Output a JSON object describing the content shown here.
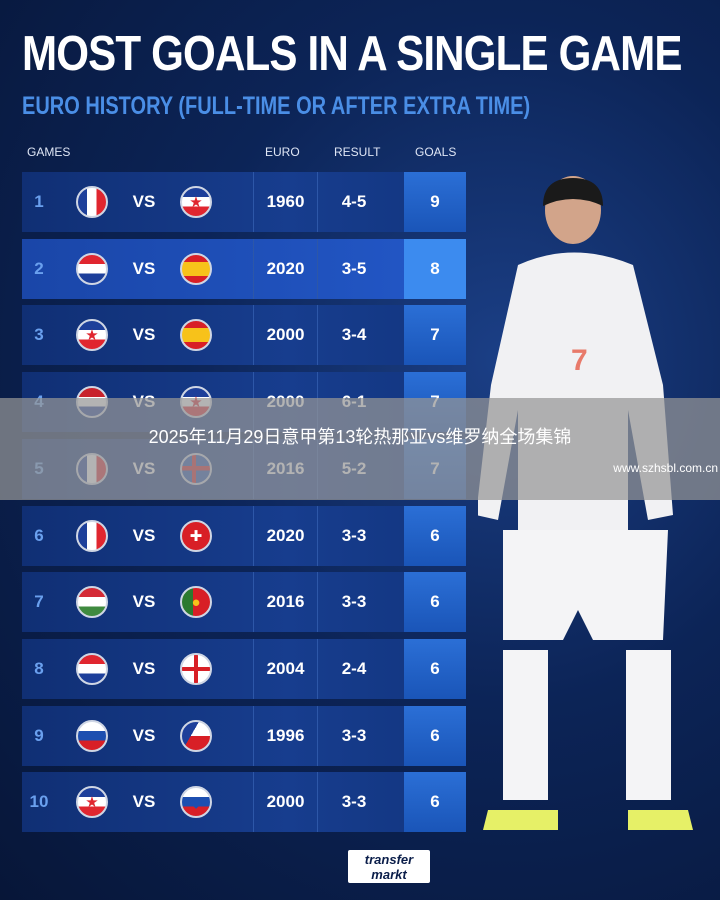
{
  "title": "MOST GOALS IN A SINGLE GAME",
  "subtitle": "EURO HISTORY (FULL-TIME OR AFTER EXTRA TIME)",
  "headers": {
    "games": "GAMES",
    "euro": "EURO",
    "result": "RESULT",
    "goals": "GOALS"
  },
  "vs_label": "VS",
  "rows": [
    {
      "rank": "1",
      "team1": "fr",
      "team2": "yu",
      "euro": "1960",
      "result": "4-5",
      "goals": "9"
    },
    {
      "rank": "2",
      "team1": "hr",
      "team2": "es",
      "euro": "2020",
      "result": "3-5",
      "goals": "8"
    },
    {
      "rank": "3",
      "team1": "yu",
      "team2": "es",
      "euro": "2000",
      "result": "3-4",
      "goals": "7"
    },
    {
      "rank": "4",
      "team1": "nl",
      "team2": "yu",
      "euro": "2000",
      "result": "6-1",
      "goals": "7"
    },
    {
      "rank": "5",
      "team1": "fr",
      "team2": "is",
      "euro": "2016",
      "result": "5-2",
      "goals": "7"
    },
    {
      "rank": "6",
      "team1": "fr",
      "team2": "ch",
      "euro": "2020",
      "result": "3-3",
      "goals": "6"
    },
    {
      "rank": "7",
      "team1": "hu",
      "team2": "pt",
      "euro": "2016",
      "result": "3-3",
      "goals": "6"
    },
    {
      "rank": "8",
      "team1": "hr",
      "team2": "en",
      "euro": "2004",
      "result": "2-4",
      "goals": "6"
    },
    {
      "rank": "9",
      "team1": "ru",
      "team2": "cz",
      "euro": "1996",
      "result": "3-3",
      "goals": "6"
    },
    {
      "rank": "10",
      "team1": "yu",
      "team2": "si",
      "euro": "2000",
      "result": "3-3",
      "goals": "6"
    }
  ],
  "overlay": {
    "caption": "2025年11月29日意甲第13轮热那亚vs维罗纳全场集锦",
    "watermark": "www.szhsbl.com.cn"
  },
  "logo": {
    "line1": "transfer",
    "line2": "markt"
  },
  "colors": {
    "background": "#0c2457",
    "accent": "#4a8ee6",
    "goals_column": "#2b6fd6"
  }
}
